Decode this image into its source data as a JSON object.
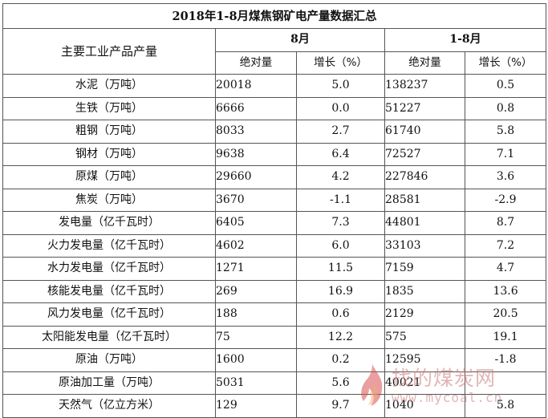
{
  "title": "2018年1-8月煤焦钢矿电产量数据汇总",
  "header": {
    "product_col": "主要工业产品产量",
    "month_group": "8月",
    "ytd_group": "1-8月",
    "absolute": "绝对量",
    "growth": "增长（%）"
  },
  "rows": [
    {
      "name": "水泥（万吨）",
      "m_abs": "20018",
      "m_g": "5.0",
      "y_abs": "138237",
      "y_g": "0.5"
    },
    {
      "name": "生铁（万吨）",
      "m_abs": "6666",
      "m_g": "0.0",
      "y_abs": "51227",
      "y_g": "0.8"
    },
    {
      "name": "粗钢（万吨）",
      "m_abs": "8033",
      "m_g": "2.7",
      "y_abs": "61740",
      "y_g": "5.8"
    },
    {
      "name": "钢材（万吨）",
      "m_abs": "9638",
      "m_g": "6.4",
      "y_abs": "72527",
      "y_g": "7.1"
    },
    {
      "name": "原煤（万吨）",
      "m_abs": "29660",
      "m_g": "4.2",
      "y_abs": "227846",
      "y_g": "3.6"
    },
    {
      "name": "焦炭（万吨）",
      "m_abs": "3670",
      "m_g": "-1.1",
      "y_abs": "28581",
      "y_g": "-2.9"
    },
    {
      "name": "发电量（亿千瓦时）",
      "m_abs": "6405",
      "m_g": "7.3",
      "y_abs": "44801",
      "y_g": "8.7"
    },
    {
      "name": "火力发电量（亿千瓦时）",
      "m_abs": "4602",
      "m_g": "6.0",
      "y_abs": "33103",
      "y_g": "7.2"
    },
    {
      "name": "水力发电量（亿千瓦时）",
      "m_abs": "1271",
      "m_g": "11.5",
      "y_abs": "7159",
      "y_g": "4.7"
    },
    {
      "name": "核能发电量（亿千瓦时）",
      "m_abs": "269",
      "m_g": "16.9",
      "y_abs": "1835",
      "y_g": "13.6"
    },
    {
      "name": "风力发电量（亿千瓦时）",
      "m_abs": "188",
      "m_g": "0.6",
      "y_abs": "2129",
      "y_g": "20.5"
    },
    {
      "name": "太阳能发电量（亿千瓦时）",
      "m_abs": "75",
      "m_g": "12.2",
      "y_abs": "575",
      "y_g": "19.1"
    },
    {
      "name": "原油（万吨）",
      "m_abs": "1600",
      "m_g": "0.2",
      "y_abs": "12595",
      "y_g": "-1.8"
    },
    {
      "name": "原油加工量（万吨）",
      "m_abs": "5031",
      "m_g": "5.6",
      "y_abs": "40021",
      "y_g": ""
    },
    {
      "name": "天然气（亿立方米）",
      "m_abs": "129",
      "m_g": "9.7",
      "y_abs": "1040",
      "y_g": "5.8"
    }
  ],
  "watermark": {
    "text": "找的煤炭网",
    "url": "www.mycoal.cn",
    "color": "#c87878"
  }
}
